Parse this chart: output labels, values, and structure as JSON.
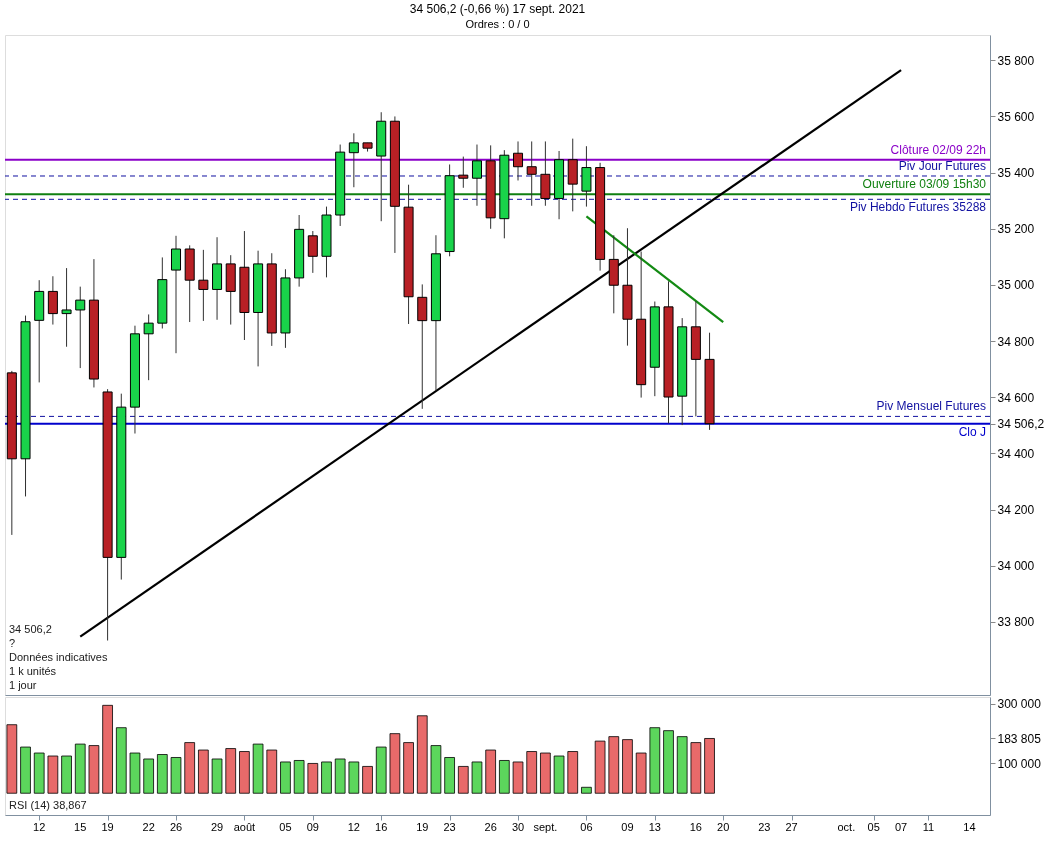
{
  "chart_data": [
    {
      "type": "candlestick",
      "title": "34 506,2 (-0,66 %) 17 sept. 2021",
      "subtitle": "Ordres : 0 / 0",
      "categories": [
        null,
        null,
        "12",
        null,
        null,
        "15",
        null,
        "19",
        null,
        null,
        "22",
        null,
        "26",
        null,
        null,
        "29",
        null,
        "août",
        null,
        null,
        "05",
        null,
        "09",
        null,
        null,
        "12",
        null,
        "16",
        null,
        null,
        "19",
        null,
        "23",
        null,
        null,
        "26",
        null,
        "30",
        null,
        "sept.",
        null,
        null,
        "06",
        null,
        null,
        "09",
        null,
        "13",
        null,
        null,
        "16",
        null,
        "20",
        null,
        null,
        "23",
        null,
        "27",
        null,
        null,
        null,
        "oct.",
        null,
        "05",
        null,
        "07",
        null,
        "11",
        null,
        null,
        "14",
        null
      ],
      "ohlc": [
        [
          34687,
          34694,
          34110,
          34381
        ],
        [
          34381,
          34891,
          34247,
          34869
        ],
        [
          34874,
          35017,
          34653,
          34977
        ],
        [
          34977,
          35031,
          34859,
          34898
        ],
        [
          34898,
          35060,
          34780,
          34911
        ],
        [
          34911,
          34994,
          34704,
          34946
        ],
        [
          34946,
          35092,
          34635,
          34665
        ],
        [
          34619,
          34629,
          33734,
          34030
        ],
        [
          34030,
          34613,
          33951,
          34565
        ],
        [
          34565,
          34855,
          34471,
          34826
        ],
        [
          34826,
          34895,
          34661,
          34864
        ],
        [
          34864,
          35098,
          34845,
          35019
        ],
        [
          35053,
          35175,
          34757,
          35128
        ],
        [
          35128,
          35141,
          34868,
          35017
        ],
        [
          35017,
          35125,
          34872,
          34984
        ],
        [
          34984,
          35170,
          34876,
          35075
        ],
        [
          35075,
          35106,
          34859,
          34977
        ],
        [
          35063,
          35192,
          34804,
          34902
        ],
        [
          34902,
          35122,
          34710,
          35075
        ],
        [
          35075,
          35113,
          34783,
          34829
        ],
        [
          34829,
          35056,
          34776,
          35025
        ],
        [
          35025,
          35249,
          34994,
          35198
        ],
        [
          35175,
          35192,
          35043,
          35102
        ],
        [
          35102,
          35279,
          35027,
          35249
        ],
        [
          35249,
          35500,
          35210,
          35473
        ],
        [
          35471,
          35540,
          35348,
          35506
        ],
        [
          35506,
          35506,
          35475,
          35487
        ],
        [
          35459,
          35615,
          35227,
          35583
        ],
        [
          35583,
          35600,
          35114,
          35280
        ],
        [
          35277,
          35357,
          34861,
          34958
        ],
        [
          34956,
          35002,
          34559,
          34873
        ],
        [
          34873,
          35177,
          34624,
          35111
        ],
        [
          35119,
          35429,
          35102,
          35389
        ],
        [
          35391,
          35457,
          35346,
          35380
        ],
        [
          35380,
          35500,
          35282,
          35442
        ],
        [
          35442,
          35497,
          35200,
          35239
        ],
        [
          35236,
          35480,
          35166,
          35462
        ],
        [
          35469,
          35511,
          35372,
          35421
        ],
        [
          35421,
          35511,
          35282,
          35394
        ],
        [
          35394,
          35511,
          35282,
          35308
        ],
        [
          35308,
          35477,
          35234,
          35446
        ],
        [
          35446,
          35521,
          35262,
          35359
        ],
        [
          35334,
          35494,
          35279,
          35418
        ],
        [
          35418,
          35435,
          35051,
          35091
        ],
        [
          35091,
          35177,
          34899,
          34999
        ],
        [
          34999,
          35202,
          34784,
          34878
        ],
        [
          34878,
          35119,
          34599,
          34645
        ],
        [
          34707,
          34941,
          34604,
          34922
        ],
        [
          34922,
          35013,
          34507,
          34601
        ],
        [
          34604,
          34882,
          34501,
          34851
        ],
        [
          34851,
          34942,
          34532,
          34735
        ],
        [
          34735,
          34830,
          34484,
          34506
        ],
        null,
        null,
        null,
        null,
        null,
        null,
        null,
        null,
        null,
        null,
        null,
        null,
        null,
        null,
        null,
        null,
        null,
        null,
        null,
        null
      ],
      "colors": [
        "#b82025",
        "#19d34a",
        "#19d34a",
        "#b82025",
        "#19d34a",
        "#19d34a",
        "#b82025",
        "#b82025",
        "#19d34a",
        "#19d34a",
        "#19d34a",
        "#19d34a",
        "#19d34a",
        "#b82025",
        "#b82025",
        "#19d34a",
        "#b82025",
        "#b82025",
        "#19d34a",
        "#b82025",
        "#19d34a",
        "#19d34a",
        "#b82025",
        "#19d34a",
        "#19d34a",
        "#19d34a",
        "#b82025",
        "#19d34a",
        "#b82025",
        "#b82025",
        "#b82025",
        "#19d34a",
        "#19d34a",
        "#b82025",
        "#19d34a",
        "#b82025",
        "#19d34a",
        "#b82025",
        "#b82025",
        "#b82025",
        "#19d34a",
        "#b82025",
        "#19d34a",
        "#b82025",
        "#b82025",
        "#b82025",
        "#b82025",
        "#19d34a",
        "#b82025",
        "#19d34a",
        "#b82025",
        "#b82025",
        null,
        null,
        null,
        null,
        null,
        null,
        null,
        null,
        null,
        null,
        null,
        null,
        null,
        null,
        null,
        null,
        null,
        null,
        null,
        null
      ],
      "series": [
        {
          "type": "line",
          "color": "#000000",
          "x": [
            "15",
            "07"
          ],
          "values": [
            33748,
            35765
          ]
        },
        {
          "type": "line",
          "color": "#138a13",
          "x": [
            "06",
            "20"
          ],
          "values": [
            35244,
            34868
          ]
        }
      ],
      "ylim": [
        33540,
        35890
      ],
      "yticks": [
        {
          "value": 33800,
          "label": "33 800"
        },
        {
          "value": 34000,
          "label": "34 000"
        },
        {
          "value": 34200,
          "label": "34 200"
        },
        {
          "value": 34400,
          "label": "34 400"
        },
        {
          "value": 34506.2,
          "label": "34 506,2"
        },
        {
          "value": 34600,
          "label": "34 600"
        },
        {
          "value": 34800,
          "label": "34 800"
        },
        {
          "value": 35000,
          "label": "35 000"
        },
        {
          "value": 35200,
          "label": "35 200"
        },
        {
          "value": 35400,
          "label": "35 400"
        },
        {
          "value": 35600,
          "label": "35 600"
        },
        {
          "value": 35800,
          "label": "35 800"
        }
      ],
      "tick_labels": "y",
      "grid": false,
      "ref_lines": [
        {
          "axis": "y",
          "value": 35446,
          "label": "Clôture 02/09 22h",
          "color": "#8a00c8",
          "line_style": "solid"
        },
        {
          "axis": "y",
          "value": 35388,
          "label": "Piv Jour Futures",
          "color": "#1010a0",
          "line_style": "dashed"
        },
        {
          "axis": "y",
          "value": 35323,
          "label": "Ouverture 03/09 15h30",
          "color": "#108010",
          "line_style": "solid"
        },
        {
          "axis": "y",
          "value": 35305,
          "label": "Piv Hebdo Futures 35288",
          "color": "#1010a0",
          "line_style": "dashed"
        },
        {
          "axis": "y",
          "value": 34532,
          "label": "Piv Mensuel Futures",
          "color": "#1010a0",
          "line_style": "dashed"
        },
        {
          "axis": "y",
          "value": 34506.2,
          "label": "Clo J",
          "color": "#0000cc",
          "line_style": "solid"
        }
      ],
      "annotations": [
        "1 jour",
        "1 k unités",
        "Données indicatives",
        "?",
        "34 506,2"
      ]
    },
    {
      "type": "bar",
      "categories": [
        null,
        null,
        "12",
        null,
        null,
        "15",
        null,
        "19",
        null,
        null,
        "22",
        null,
        "26",
        null,
        null,
        "29",
        null,
        "août",
        null,
        null,
        "05",
        null,
        "09",
        null,
        null,
        "12",
        null,
        "16",
        null,
        null,
        "19",
        null,
        "23",
        null,
        null,
        "26",
        null,
        "30",
        null,
        "sept.",
        null,
        null,
        "06",
        null,
        null,
        "09",
        null,
        "13",
        null,
        null,
        "16",
        null,
        "20",
        null,
        null,
        "23",
        null,
        "27",
        null,
        null,
        null,
        "oct.",
        null,
        "05",
        null,
        "07",
        null,
        "11",
        null,
        null,
        "14",
        null
      ],
      "values": [
        230000,
        155000,
        135000,
        125000,
        125000,
        165000,
        160000,
        295000,
        220000,
        135000,
        115000,
        130000,
        120000,
        170000,
        145000,
        115000,
        150000,
        140000,
        165000,
        145000,
        105000,
        110000,
        100000,
        105000,
        115000,
        105000,
        90000,
        155000,
        200000,
        170000,
        260000,
        160000,
        120000,
        90000,
        105000,
        145000,
        110000,
        105000,
        140000,
        135000,
        125000,
        140000,
        20000,
        175000,
        190000,
        180000,
        135000,
        220000,
        210000,
        190000,
        170000,
        183805,
        null,
        null,
        null,
        null,
        null,
        null,
        null,
        null,
        null,
        null,
        null,
        null,
        null,
        null,
        null,
        null,
        null,
        null,
        null,
        null
      ],
      "colors": [
        "#e86a6a",
        "#5cd65c",
        "#5cd65c",
        "#e86a6a",
        "#5cd65c",
        "#5cd65c",
        "#e86a6a",
        "#e86a6a",
        "#5cd65c",
        "#5cd65c",
        "#5cd65c",
        "#5cd65c",
        "#5cd65c",
        "#e86a6a",
        "#e86a6a",
        "#5cd65c",
        "#e86a6a",
        "#e86a6a",
        "#5cd65c",
        "#e86a6a",
        "#5cd65c",
        "#5cd65c",
        "#e86a6a",
        "#5cd65c",
        "#5cd65c",
        "#5cd65c",
        "#e86a6a",
        "#5cd65c",
        "#e86a6a",
        "#e86a6a",
        "#e86a6a",
        "#5cd65c",
        "#5cd65c",
        "#e86a6a",
        "#5cd65c",
        "#e86a6a",
        "#5cd65c",
        "#e86a6a",
        "#e86a6a",
        "#e86a6a",
        "#5cd65c",
        "#e86a6a",
        "#5cd65c",
        "#e86a6a",
        "#e86a6a",
        "#e86a6a",
        "#e86a6a",
        "#5cd65c",
        "#5cd65c",
        "#5cd65c",
        "#e86a6a",
        "#e86a6a",
        null,
        null,
        null,
        null,
        null,
        null,
        null,
        null,
        null,
        null,
        null,
        null,
        null,
        null,
        null,
        null,
        null,
        null,
        null,
        null
      ],
      "ylim": [
        -73000,
        323000
      ],
      "yticks": [
        {
          "value": 100000,
          "label": "100 000"
        },
        {
          "value": 183805,
          "label": "183 805"
        },
        {
          "value": 300000,
          "label": "300 000"
        }
      ],
      "grid": false,
      "annotations": [
        "RSI (14) 38,867"
      ]
    }
  ]
}
